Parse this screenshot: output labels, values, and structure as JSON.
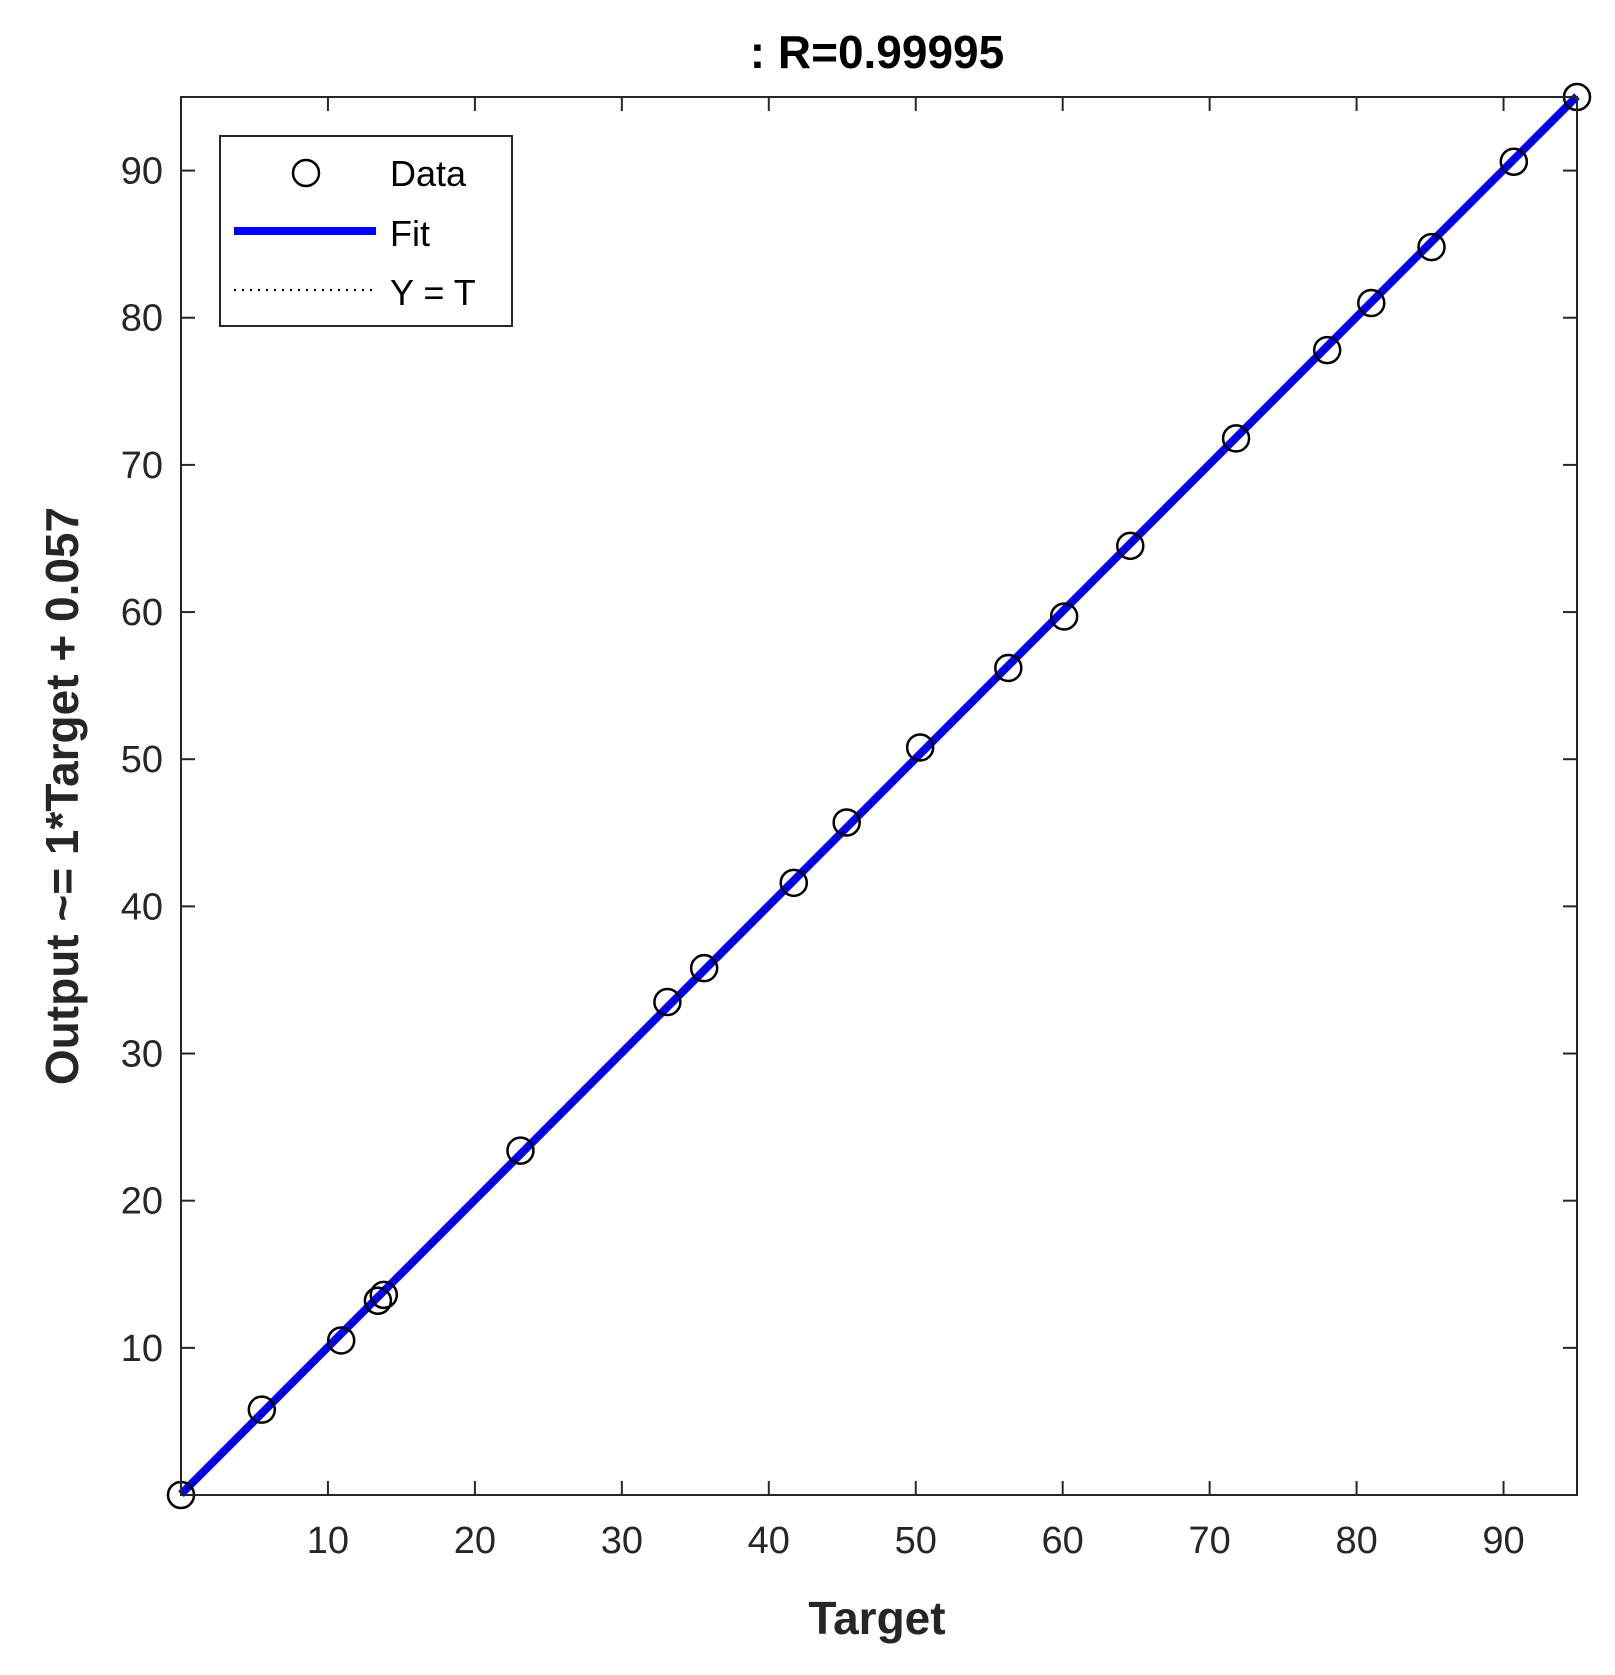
{
  "chart_data": {
    "type": "scatter",
    "title": ": R=0.99995",
    "xlabel": "Target",
    "ylabel": "Output ~= 1*Target + 0.057",
    "xlim": [
      0,
      95
    ],
    "ylim": [
      0,
      95
    ],
    "xticks": [
      10,
      20,
      30,
      40,
      50,
      60,
      70,
      80,
      90
    ],
    "yticks": [
      10,
      20,
      30,
      40,
      50,
      60,
      70,
      80,
      90
    ],
    "grid": false,
    "legend_position": "top-left",
    "legend": [
      {
        "label": "Data",
        "style": "circle-marker"
      },
      {
        "label": "Fit",
        "style": "solid-line",
        "color": "#0000ff"
      },
      {
        "label": "Y = T",
        "style": "dotted-line",
        "color": "#000000"
      }
    ],
    "series": [
      {
        "name": "Data",
        "points": [
          {
            "x": 0.0,
            "y": 0.0
          },
          {
            "x": 5.5,
            "y": 5.8
          },
          {
            "x": 10.9,
            "y": 10.5
          },
          {
            "x": 13.4,
            "y": 13.2
          },
          {
            "x": 13.8,
            "y": 13.6
          },
          {
            "x": 23.1,
            "y": 23.4
          },
          {
            "x": 33.1,
            "y": 33.5
          },
          {
            "x": 35.6,
            "y": 35.8
          },
          {
            "x": 41.7,
            "y": 41.6
          },
          {
            "x": 45.3,
            "y": 45.7
          },
          {
            "x": 50.3,
            "y": 50.8
          },
          {
            "x": 56.3,
            "y": 56.2
          },
          {
            "x": 60.1,
            "y": 59.7
          },
          {
            "x": 64.6,
            "y": 64.5
          },
          {
            "x": 71.8,
            "y": 71.8
          },
          {
            "x": 78.0,
            "y": 77.8
          },
          {
            "x": 81.0,
            "y": 81.0
          },
          {
            "x": 85.1,
            "y": 84.8
          },
          {
            "x": 90.7,
            "y": 90.6
          },
          {
            "x": 95.0,
            "y": 95.0
          }
        ]
      },
      {
        "name": "Fit",
        "slope": 1,
        "intercept": 0.057,
        "color": "#0000ff"
      },
      {
        "name": "Y = T",
        "slope": 1,
        "intercept": 0,
        "color": "#000000"
      }
    ]
  }
}
